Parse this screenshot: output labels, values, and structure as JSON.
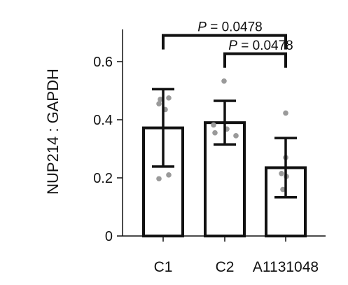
{
  "chart_data": {
    "type": "bar",
    "ylabel": "NUP214 : GAPDH",
    "xlabel": "",
    "categories": [
      "C1",
      "C2",
      "A1131048"
    ],
    "values": [
      0.372,
      0.39,
      0.235
    ],
    "error": [
      0.133,
      0.075,
      0.102
    ],
    "points": [
      [
        0.475,
        0.47,
        0.455,
        0.435,
        0.21,
        0.197
      ],
      [
        0.533,
        0.382,
        0.368,
        0.355,
        0.345
      ],
      [
        0.423,
        0.27,
        0.215,
        0.205,
        0.16
      ]
    ],
    "ylim": [
      0,
      0.7
    ],
    "yticks": [
      0,
      0.2,
      0.4,
      0.6
    ],
    "ytick_labels": [
      "0",
      "0.2",
      "0.4",
      "0.6"
    ],
    "annotations": [
      {
        "from": "C1",
        "to": "A1131048",
        "label_p": "P",
        "label_rest": " = 0.0478",
        "y": 0.69
      },
      {
        "from": "C2",
        "to": "A1131048",
        "label_p": "P",
        "label_rest": " = 0.0478",
        "y": 0.627
      }
    ],
    "colors": {
      "bar_fill": "#ffffff",
      "bar_edge": "#111111",
      "dots": "#9a9a9a"
    }
  }
}
